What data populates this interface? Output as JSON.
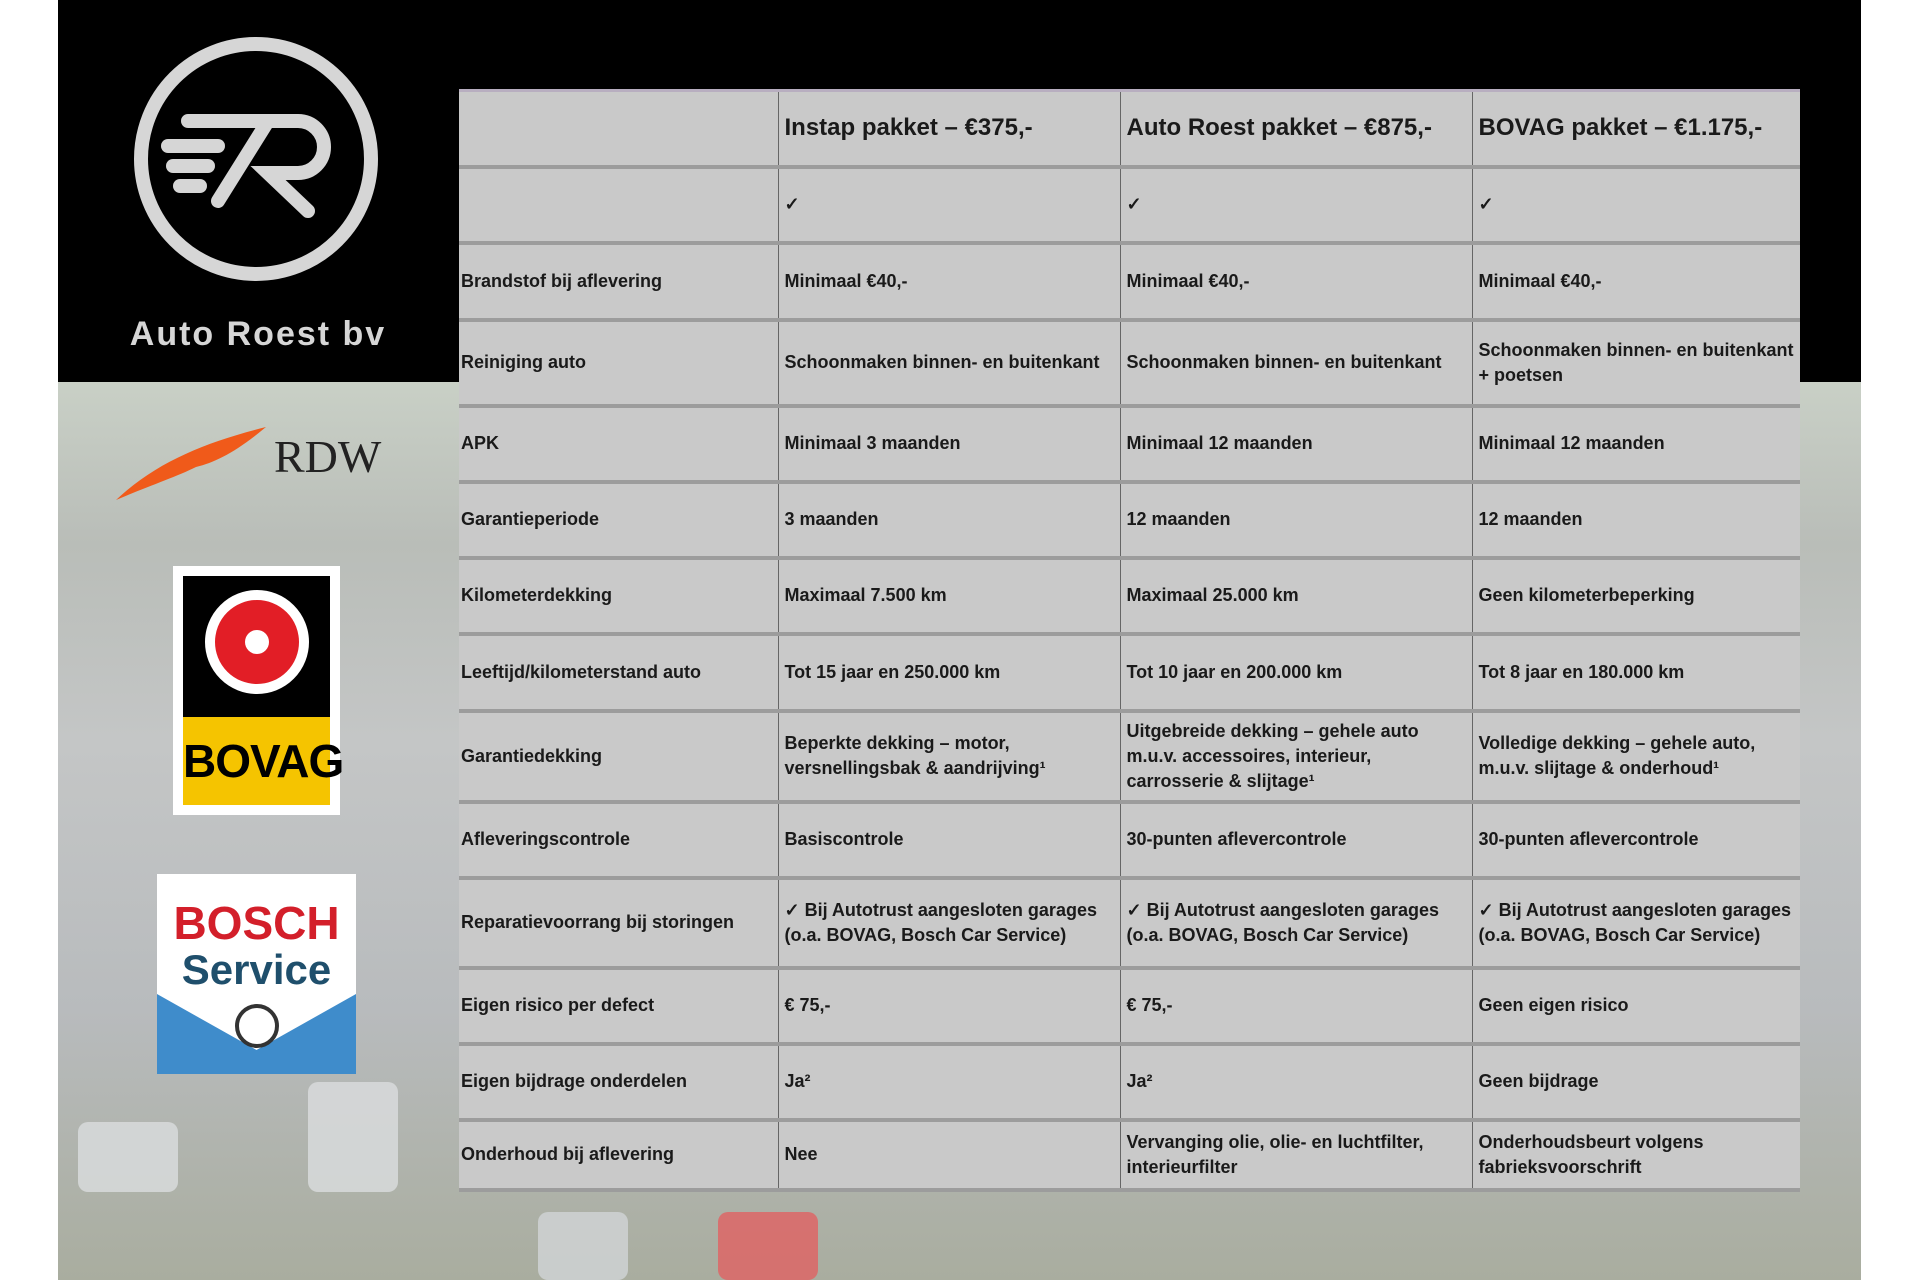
{
  "brand": {
    "name": "Auto Roest bv",
    "logo_text": "7R"
  },
  "partners": {
    "rdw": "RDW",
    "bovag": "BOVAG",
    "bosch_1": "BOSCH",
    "bosch_2": "Service"
  },
  "table": {
    "headers": [
      "",
      "Instap pakket – €375,-",
      "Auto Roest pakket – €875,-",
      "BOVAG pakket – €1.175,-"
    ],
    "rows": [
      [
        "",
        "✓",
        "✓",
        "✓"
      ],
      [
        "Brandstof bij aflevering",
        "Minimaal €40,-",
        "Minimaal €40,-",
        "Minimaal €40,-"
      ],
      [
        "Reiniging auto",
        "Schoonmaken binnen- en buitenkant",
        "Schoonmaken binnen- en buitenkant",
        "Schoonmaken binnen- en buitenkant + poetsen"
      ],
      [
        "APK",
        "Minimaal 3 maanden",
        "Minimaal 12 maanden",
        "Minimaal 12 maanden"
      ],
      [
        "Garantieperiode",
        "3 maanden",
        "12 maanden",
        "12 maanden"
      ],
      [
        "Kilometerdekking",
        "Maximaal 7.500 km",
        "Maximaal 25.000 km",
        "Geen kilometerbeperking"
      ],
      [
        "Leeftijd/kilometerstand auto",
        "Tot 15 jaar en 250.000 km",
        "Tot 10 jaar en 200.000 km",
        "Tot 8 jaar en 180.000 km"
      ],
      [
        "Garantiedekking",
        "Beperkte dekking – motor, versnellingsbak & aandrijving¹",
        "Uitgebreide dekking – gehele auto m.u.v. accessoires, interieur, carrosserie & slijtage¹",
        "Volledige dekking – gehele auto, m.u.v. slijtage & onderhoud¹"
      ],
      [
        "Afleveringscontrole",
        "Basiscontrole",
        "30-punten aflevercontrole",
        "30-punten aflevercontrole"
      ],
      [
        "Reparatievoorrang bij storingen",
        "✓ Bij Autotrust aangesloten garages (o.a. BOVAG, Bosch Car Service)",
        "✓ Bij Autotrust aangesloten garages (o.a. BOVAG, Bosch Car Service)",
        "✓ Bij Autotrust aangesloten garages (o.a. BOVAG, Bosch Car Service)"
      ],
      [
        "Eigen risico per defect",
        "€ 75,-",
        "€ 75,-",
        "Geen eigen risico"
      ],
      [
        "Eigen bijdrage onderdelen",
        "Ja²",
        "Ja²",
        "Geen bijdrage"
      ],
      [
        "Onderhoud bij aflevering",
        "Nee",
        "Vervanging olie, olie- en luchtfilter, interieurfilter",
        "Onderhoudsbeurt volgens fabrieksvoorschrift"
      ]
    ]
  },
  "colors": {
    "table_bg": "#c9c9c9",
    "bovag_yellow": "#f5c400",
    "bovag_red": "#e21e26",
    "bosch_red": "#d31f2a",
    "bosch_blue": "#3f8ccb",
    "rdw_orange": "#f05a1a"
  }
}
